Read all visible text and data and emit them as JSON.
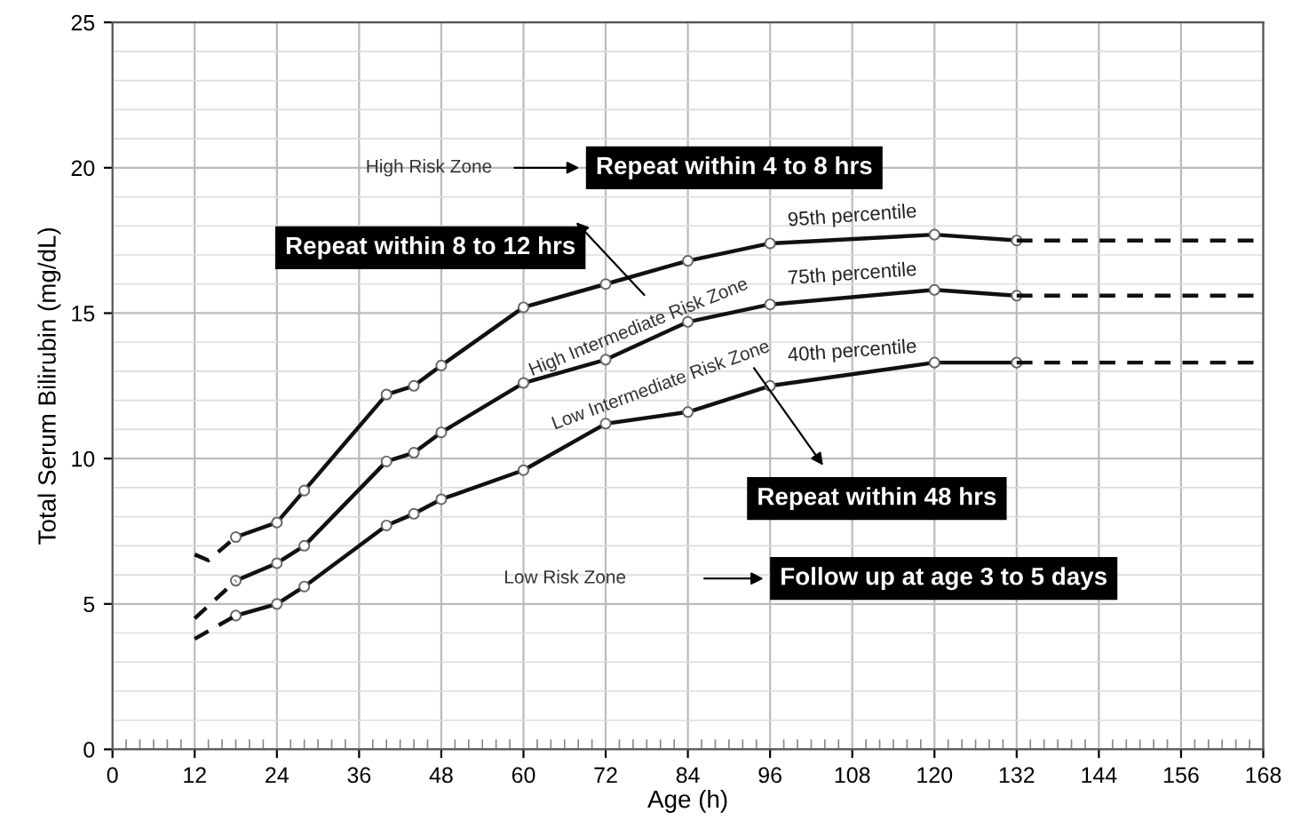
{
  "chart_data": {
    "type": "line",
    "xlabel": "Age (h)",
    "ylabel": "Total Serum Bilirubin (mg/dL)",
    "xlim": [
      0,
      168
    ],
    "xticks": [
      0,
      12,
      24,
      36,
      48,
      60,
      72,
      84,
      96,
      108,
      120,
      132,
      144,
      156,
      168
    ],
    "ylim": [
      0,
      25
    ],
    "yticks": [
      0,
      5,
      10,
      15,
      20,
      25
    ],
    "grid": true,
    "series": [
      {
        "name": "95th percentile",
        "color": "#111111",
        "marker": "circle",
        "line_style": "solid",
        "x": [
          18,
          24,
          28,
          40,
          44,
          48,
          60,
          72,
          84,
          96,
          120,
          132
        ],
        "values": [
          7.3,
          7.8,
          8.9,
          12.2,
          12.5,
          13.2,
          15.2,
          16.0,
          16.8,
          17.4,
          17.7,
          17.5
        ]
      },
      {
        "name": "75th percentile",
        "color": "#111111",
        "marker": "circle",
        "line_style": "solid",
        "x": [
          18,
          24,
          28,
          40,
          44,
          48,
          60,
          72,
          84,
          96,
          120,
          132
        ],
        "values": [
          5.8,
          6.4,
          7.0,
          9.9,
          10.2,
          10.9,
          12.6,
          13.4,
          14.7,
          15.3,
          15.8,
          15.6
        ]
      },
      {
        "name": "40th percentile",
        "color": "#111111",
        "marker": "circle",
        "line_style": "solid",
        "x": [
          18,
          24,
          28,
          40,
          44,
          48,
          60,
          72,
          84,
          96,
          120,
          132
        ],
        "values": [
          4.6,
          5.0,
          5.6,
          7.7,
          8.1,
          8.6,
          9.6,
          11.2,
          11.6,
          12.5,
          13.3,
          13.3
        ]
      },
      {
        "color": "#111111",
        "marker": "none",
        "line_style": "dashed",
        "x": [
          12,
          14,
          18
        ],
        "values": [
          6.7,
          6.5,
          7.3
        ]
      },
      {
        "color": "#111111",
        "marker": "none",
        "line_style": "dashed",
        "x": [
          12,
          18
        ],
        "values": [
          4.5,
          5.8
        ]
      },
      {
        "color": "#111111",
        "marker": "none",
        "line_style": "dashed",
        "x": [
          12,
          18
        ],
        "values": [
          3.8,
          4.6
        ]
      },
      {
        "color": "#111111",
        "marker": "none",
        "line_style": "dashed",
        "x": [
          132,
          168
        ],
        "values": [
          17.5,
          17.5
        ]
      },
      {
        "color": "#111111",
        "marker": "none",
        "line_style": "dashed",
        "x": [
          132,
          168
        ],
        "values": [
          15.6,
          15.6
        ]
      },
      {
        "color": "#111111",
        "marker": "none",
        "line_style": "dashed",
        "x": [
          132,
          168
        ],
        "values": [
          13.3,
          13.3
        ]
      }
    ],
    "annotations": [
      "High Risk Zone",
      "Repeat within 4 to 8 hrs",
      "Repeat within 8 to 12 hrs",
      "High Intermediate Risk Zone",
      "Low Intermediate Risk Zone",
      "Repeat within 48 hrs",
      "Low Risk Zone",
      "Follow up at age 3 to 5 days"
    ]
  }
}
